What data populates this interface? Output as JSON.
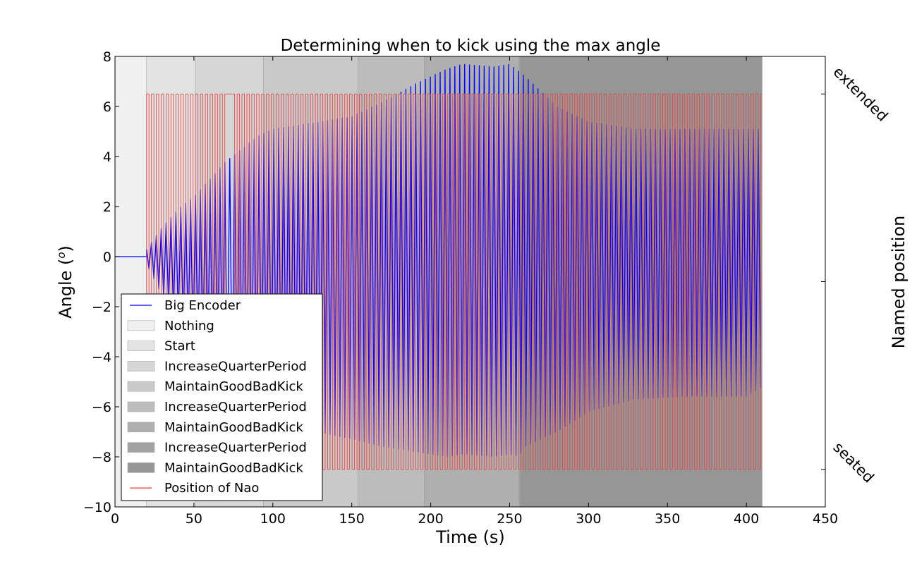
{
  "chart_data": {
    "type": "line",
    "title": "Determining when to kick using the max angle",
    "xlabel": "Time (s)",
    "ylabel": "Angle (",
    "ylabel_sup": "o",
    "ylabel_close": ")",
    "right_ylabel": "Named position",
    "xlim": [
      0,
      450
    ],
    "ylim": [
      -10,
      8
    ],
    "xticks": [
      0,
      50,
      100,
      150,
      200,
      250,
      300,
      350,
      400,
      450
    ],
    "yticks": [
      8,
      6,
      4,
      2,
      0,
      -2,
      -4,
      -6,
      -8,
      -10
    ],
    "ytick_labels": [
      "8",
      "6",
      "4",
      "2",
      "0",
      "−2",
      "−4",
      "−6",
      "−8",
      "−10"
    ],
    "grid": false,
    "legend_position": "lower-left",
    "named_positions": [
      {
        "label": "extended",
        "value": 6.5
      },
      {
        "label": "seated",
        "value": -8.5
      }
    ],
    "regions": [
      {
        "label": "Nothing",
        "start": 0,
        "end": 20,
        "color": "#f0f0f0"
      },
      {
        "label": "Start",
        "start": 20,
        "end": 51,
        "color": "#e3e3e3"
      },
      {
        "label": "IncreaseQuarterPeriod",
        "start": 51,
        "end": 94,
        "color": "#d6d6d6"
      },
      {
        "label": "MaintainGoodBadKick",
        "start": 94,
        "end": 154,
        "color": "#c9c9c9"
      },
      {
        "label": "IncreaseQuarterPeriod",
        "start": 154,
        "end": 196,
        "color": "#bcbcbc"
      },
      {
        "label": "MaintainGoodBadKick",
        "start": 196,
        "end": 256,
        "color": "#afafaf"
      },
      {
        "label": "IncreaseQuarterPeriod",
        "start": 256,
        "end": 257,
        "color": "#a2a2a2"
      },
      {
        "label": "MaintainGoodBadKick",
        "start": 257,
        "end": 410,
        "color": "#969696"
      }
    ],
    "series": [
      {
        "name": "Big Encoder",
        "color": "#0000ff",
        "style": "oscillation",
        "start": 20,
        "end": 410,
        "period": 3.1,
        "baseline": 0,
        "envelope_t": [
          20,
          30,
          40,
          50,
          60,
          70,
          80,
          90,
          100,
          120,
          150,
          170,
          190,
          200,
          210,
          220,
          240,
          250,
          256,
          260,
          280,
          300,
          330,
          360,
          400,
          410
        ],
        "envelope_max": [
          0.3,
          1.2,
          1.9,
          2.4,
          3.1,
          3.8,
          4.3,
          4.8,
          5.1,
          5.3,
          5.6,
          6.2,
          6.9,
          7.2,
          7.5,
          7.7,
          7.6,
          7.7,
          7.4,
          7.2,
          6.0,
          5.4,
          5.1,
          5.1,
          5.1,
          5.1
        ],
        "envelope_min": [
          -0.3,
          -1.6,
          -2.8,
          -3.9,
          -4.7,
          -5.3,
          -5.8,
          -6.4,
          -6.6,
          -6.9,
          -7.3,
          -7.6,
          -7.8,
          -7.9,
          -8.0,
          -7.9,
          -8.0,
          -7.9,
          -8.0,
          -7.6,
          -7.0,
          -6.2,
          -5.7,
          -5.6,
          -5.6,
          -5.2
        ]
      },
      {
        "name": "Position of Nao",
        "color": "#e24a4a",
        "style": "square",
        "start": 20,
        "end": 410,
        "period": 3.1,
        "high": 6.5,
        "low": -8.5,
        "hold_high": [
          70,
          75
        ]
      }
    ],
    "legend": [
      {
        "label": "Big Encoder",
        "kind": "line",
        "color": "#0000ff"
      },
      {
        "label": "Nothing",
        "kind": "patch",
        "color": "#f0f0f0"
      },
      {
        "label": "Start",
        "kind": "patch",
        "color": "#e3e3e3"
      },
      {
        "label": "IncreaseQuarterPeriod",
        "kind": "patch",
        "color": "#d6d6d6"
      },
      {
        "label": "MaintainGoodBadKick",
        "kind": "patch",
        "color": "#c9c9c9"
      },
      {
        "label": "IncreaseQuarterPeriod",
        "kind": "patch",
        "color": "#bcbcbc"
      },
      {
        "label": "MaintainGoodBadKick",
        "kind": "patch",
        "color": "#afafaf"
      },
      {
        "label": "IncreaseQuarterPeriod",
        "kind": "patch",
        "color": "#a2a2a2"
      },
      {
        "label": "MaintainGoodBadKick",
        "kind": "patch",
        "color": "#969696"
      },
      {
        "label": "Position of Nao",
        "kind": "line",
        "color": "#e24a4a"
      }
    ]
  }
}
